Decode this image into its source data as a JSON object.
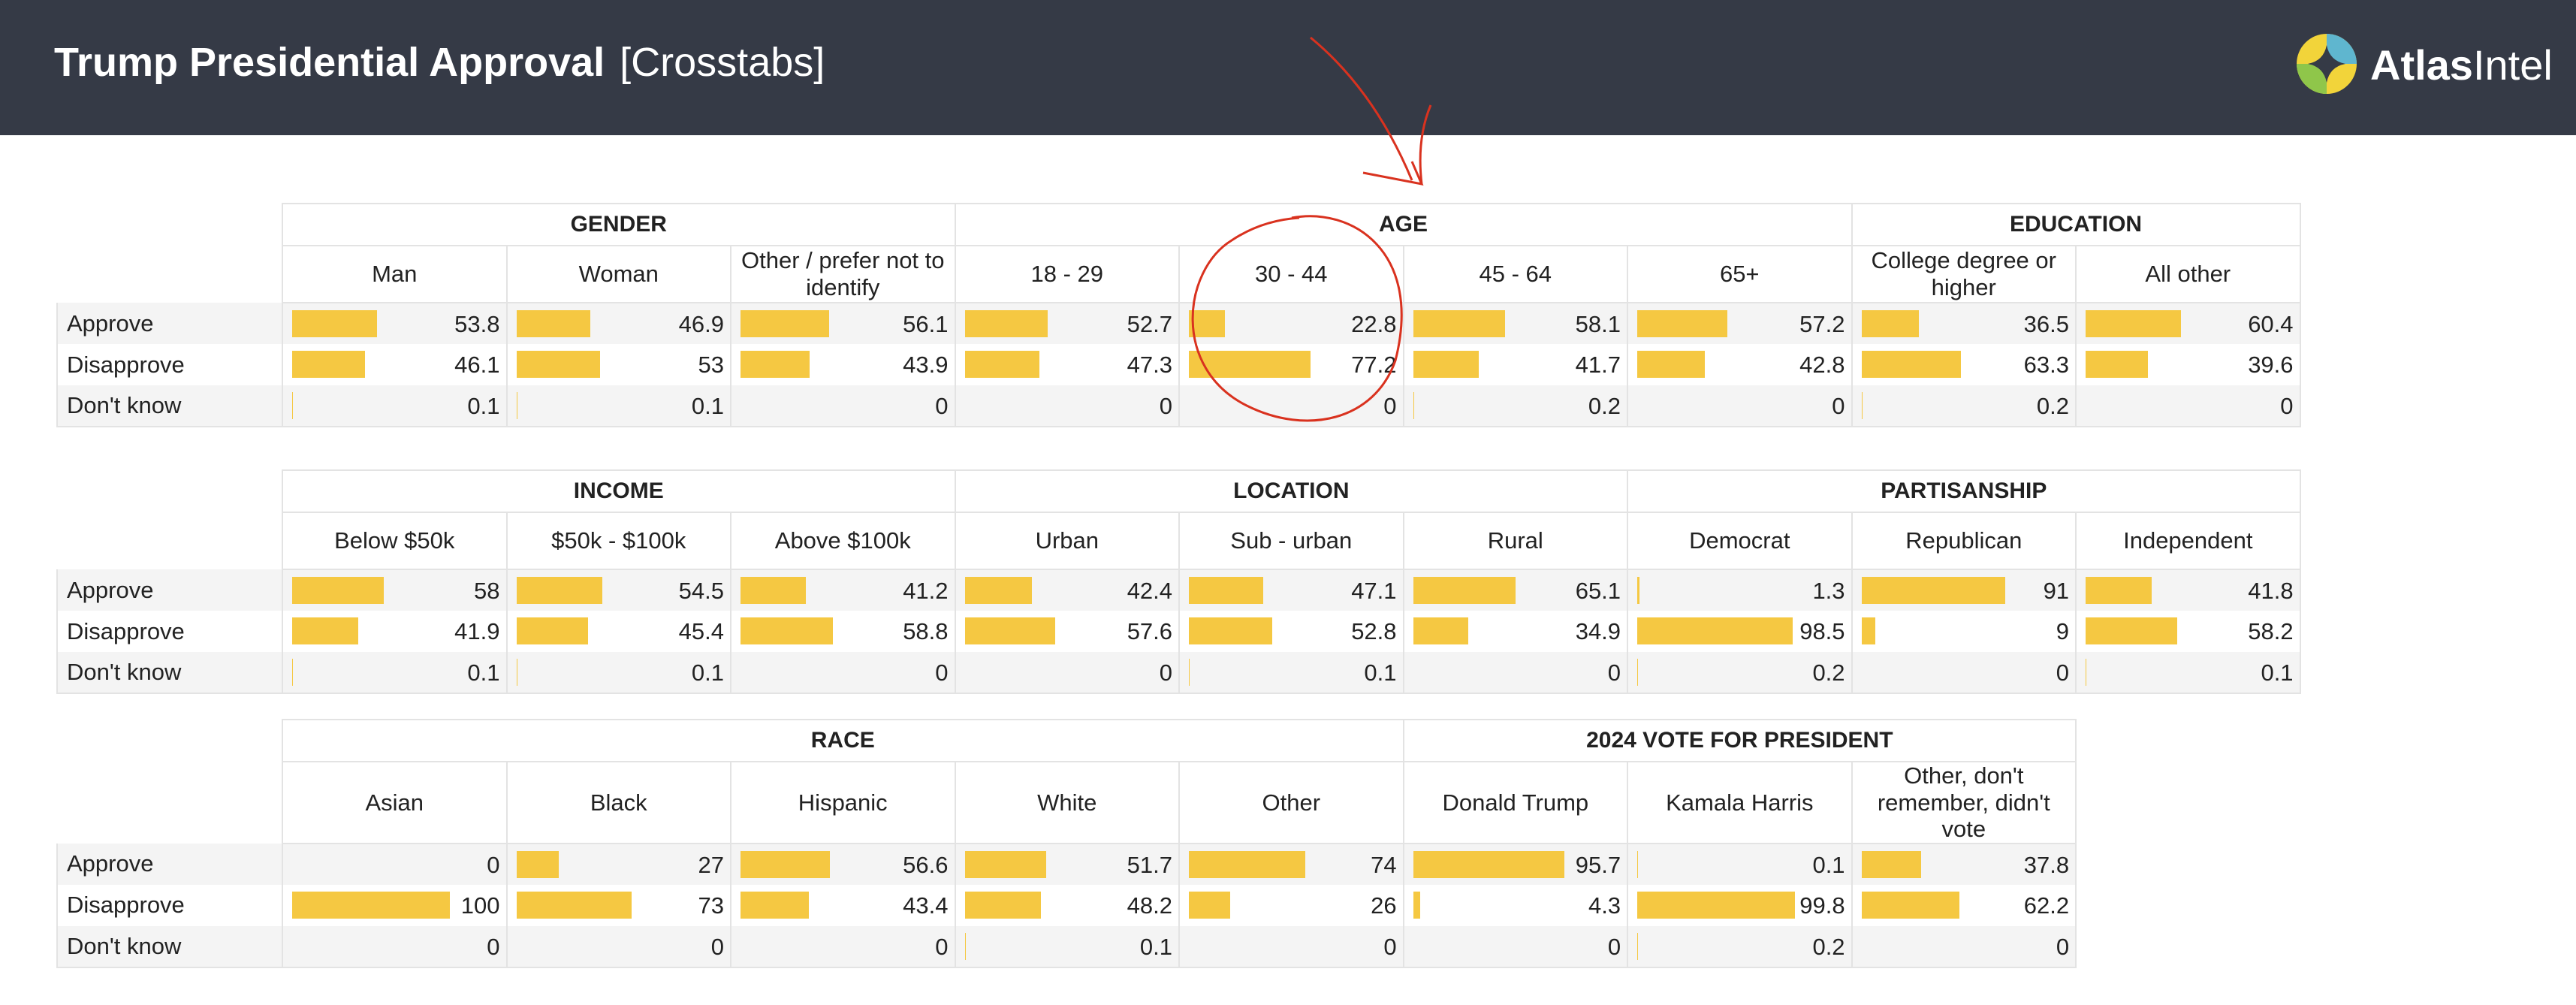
{
  "header": {
    "title_bold": "Trump Presidential Approval",
    "title_sub": "[Crosstabs]",
    "brand_bold": "Atlas",
    "brand_rest": "Intel"
  },
  "colors": {
    "header_bg": "#353a46",
    "bar": "#f5c842",
    "annotation": "#d9321f"
  },
  "chart_data": [
    {
      "type": "table",
      "row_labels": [
        "Approve",
        "Disapprove",
        "Don't know"
      ],
      "groups": [
        {
          "name": "GENDER",
          "columns": [
            {
              "label": "Man",
              "values": [
                53.8,
                46.1,
                0.1
              ]
            },
            {
              "label": "Woman",
              "values": [
                46.9,
                53,
                0.1
              ]
            },
            {
              "label": "Other / prefer not to identify",
              "values": [
                56.1,
                43.9,
                0
              ]
            }
          ]
        },
        {
          "name": "AGE",
          "columns": [
            {
              "label": "18 - 29",
              "values": [
                52.7,
                47.3,
                0
              ]
            },
            {
              "label": "30 - 44",
              "values": [
                22.8,
                77.2,
                0
              ]
            },
            {
              "label": "45 - 64",
              "values": [
                58.1,
                41.7,
                0.2
              ]
            },
            {
              "label": "65+",
              "values": [
                57.2,
                42.8,
                0
              ]
            }
          ]
        },
        {
          "name": "EDUCATION",
          "columns": [
            {
              "label": "College degree or higher",
              "values": [
                36.5,
                63.3,
                0.2
              ]
            },
            {
              "label": "All other",
              "values": [
                60.4,
                39.6,
                0
              ]
            }
          ]
        }
      ]
    },
    {
      "type": "table",
      "row_labels": [
        "Approve",
        "Disapprove",
        "Don't know"
      ],
      "groups": [
        {
          "name": "INCOME",
          "columns": [
            {
              "label": "Below $50k",
              "values": [
                58,
                41.9,
                0.1
              ]
            },
            {
              "label": "$50k - $100k",
              "values": [
                54.5,
                45.4,
                0.1
              ]
            },
            {
              "label": "Above $100k",
              "values": [
                41.2,
                58.8,
                0
              ]
            }
          ]
        },
        {
          "name": "LOCATION",
          "columns": [
            {
              "label": "Urban",
              "values": [
                42.4,
                57.6,
                0
              ]
            },
            {
              "label": "Sub - urban",
              "values": [
                47.1,
                52.8,
                0.1
              ]
            },
            {
              "label": "Rural",
              "values": [
                65.1,
                34.9,
                0
              ]
            }
          ]
        },
        {
          "name": "PARTISANSHIP",
          "columns": [
            {
              "label": "Democrat",
              "values": [
                1.3,
                98.5,
                0.2
              ]
            },
            {
              "label": "Republican",
              "values": [
                91,
                9,
                0
              ]
            },
            {
              "label": "Independent",
              "values": [
                41.8,
                58.2,
                0.1
              ]
            }
          ]
        }
      ]
    },
    {
      "type": "table",
      "row_labels": [
        "Approve",
        "Disapprove",
        "Don't know"
      ],
      "groups": [
        {
          "name": "RACE",
          "columns": [
            {
              "label": "Asian",
              "values": [
                0,
                100,
                0
              ]
            },
            {
              "label": "Black",
              "values": [
                27,
                73,
                0
              ]
            },
            {
              "label": "Hispanic",
              "values": [
                56.6,
                43.4,
                0
              ]
            },
            {
              "label": "White",
              "values": [
                51.7,
                48.2,
                0.1
              ]
            },
            {
              "label": "Other",
              "values": [
                74,
                26,
                0
              ]
            }
          ]
        },
        {
          "name": "2024 VOTE FOR PRESIDENT",
          "columns": [
            {
              "label": "Donald Trump",
              "values": [
                95.7,
                4.3,
                0
              ]
            },
            {
              "label": "Kamala Harris",
              "values": [
                0.1,
                99.8,
                0.2
              ]
            },
            {
              "label": "Other, don't remember, didn't vote",
              "values": [
                37.8,
                62.2,
                0
              ]
            }
          ]
        }
      ]
    }
  ]
}
